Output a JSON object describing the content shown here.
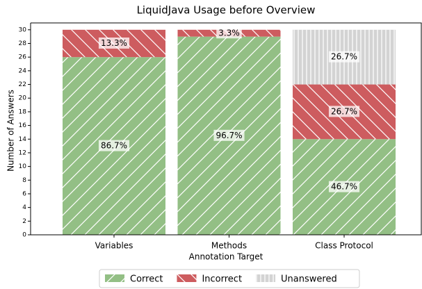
{
  "chart_data": {
    "type": "stacked_bar",
    "title": "LiquidJava Usage before Overview",
    "xlabel": "Annotation Target",
    "ylabel": "Number of Answers",
    "categories": [
      "Variables",
      "Methods",
      "Class Protocol"
    ],
    "series": [
      {
        "name": "Correct",
        "color": "#93bf85",
        "hatch": "/",
        "values": [
          26,
          29,
          14
        ],
        "value_labels": [
          "86.7%",
          "96.7%",
          "46.7%"
        ]
      },
      {
        "name": "Incorrect",
        "color": "#cd5c5f",
        "hatch": "\\",
        "values": [
          4,
          1,
          8
        ],
        "value_labels": [
          "13.3%",
          "3.3%",
          "26.7%"
        ]
      },
      {
        "name": "Unanswered",
        "color": "#d3d3d3",
        "hatch": "|",
        "values": [
          0,
          0,
          8
        ],
        "value_labels": [
          null,
          null,
          "26.7%"
        ]
      }
    ],
    "ylim": [
      0,
      31
    ],
    "yticks": [
      0,
      2,
      4,
      6,
      8,
      10,
      12,
      14,
      16,
      18,
      20,
      22,
      24,
      26,
      28,
      30
    ],
    "legend": "bottom"
  }
}
